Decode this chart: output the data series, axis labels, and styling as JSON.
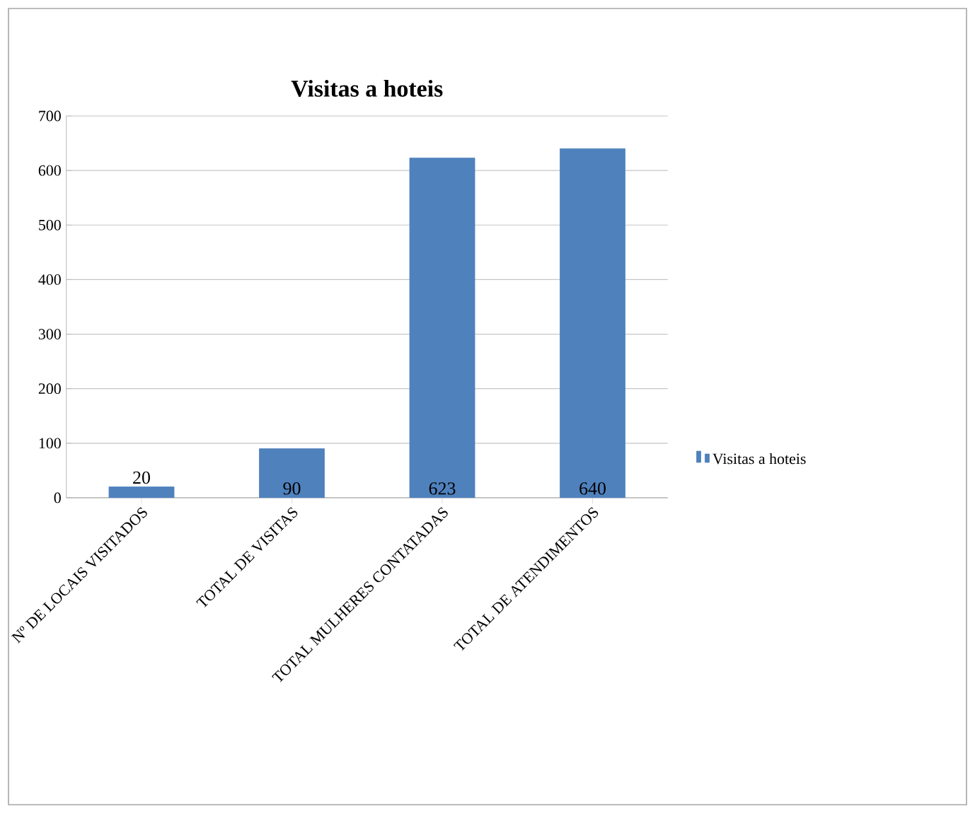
{
  "chart_data": {
    "type": "bar",
    "title": "Visitas a hoteis",
    "categories": [
      "Nº DE LOCAIS VISITADOS",
      "TOTAL DE VISITAS",
      "TOTAL MULHERES CONTATADAS",
      "TOTAL DE ATENDIMENTOS"
    ],
    "series": [
      {
        "name": "Visitas a hoteis",
        "color": "#4f81bd",
        "values": [
          20,
          90,
          623,
          640
        ]
      }
    ],
    "ylim": [
      0,
      700
    ],
    "yticks": [
      0,
      100,
      200,
      300,
      400,
      500,
      600,
      700
    ],
    "grid": "y",
    "legend": "right",
    "data_labels": true
  }
}
